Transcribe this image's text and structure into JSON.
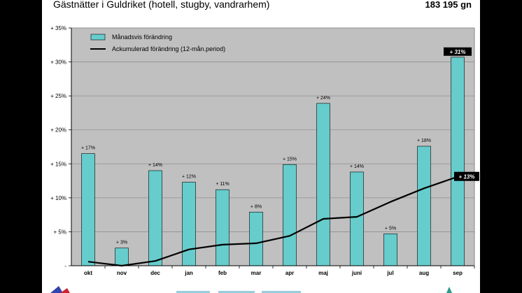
{
  "header": {
    "title": "Gästnätter i Guldriket (hotell, stugby, vandrarhem)",
    "total": "183 195 gn"
  },
  "colors": {
    "background": "#000000",
    "slide": "#ffffff",
    "plot_area": "#c0c0c0",
    "bar_fill": "#66cccc",
    "line": "#000000",
    "callout_box": "#000000",
    "callout_text": "#ffffff"
  },
  "chart_data": {
    "type": "bar",
    "categories": [
      "okt",
      "nov",
      "dec",
      "jan",
      "feb",
      "mar",
      "apr",
      "maj",
      "juni",
      "jul",
      "aug",
      "sep"
    ],
    "series": [
      {
        "name": "Månadsvis förändring",
        "type": "bar",
        "values": [
          16.5,
          2.6,
          14.0,
          12.3,
          11.2,
          7.9,
          14.9,
          23.9,
          13.8,
          4.7,
          17.6,
          30.7
        ],
        "labels": [
          "+ 17%",
          "+ 3%",
          "+ 14%",
          "+ 12%",
          "+ 11%",
          "+ 8%",
          "+ 15%",
          "+ 24%",
          "+ 14%",
          "+ 5%",
          "+ 18%",
          "+ 31%"
        ]
      },
      {
        "name": "Ackumulerad förändring (12-mån.period)",
        "type": "line",
        "values": [
          0.6,
          0.0,
          0.7,
          2.4,
          3.1,
          3.3,
          4.4,
          6.9,
          7.2,
          9.4,
          11.4,
          13.1
        ],
        "end_label": "+ 13%"
      }
    ],
    "ylim": [
      0,
      35
    ],
    "yticks": [
      0,
      5,
      10,
      15,
      20,
      25,
      30,
      35
    ],
    "ytick_labels": [
      "-",
      "+ 5%",
      "+ 10%",
      "+ 15%",
      "+ 20%",
      "+ 25%",
      "+ 30%",
      "+ 35%"
    ],
    "grid": true,
    "legend_position": "top-left"
  }
}
